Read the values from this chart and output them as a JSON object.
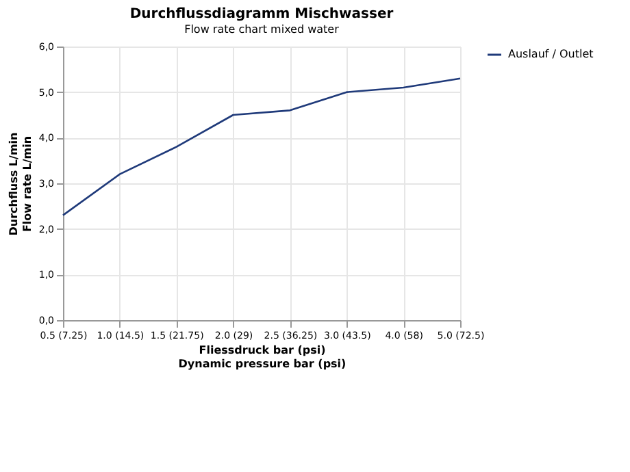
{
  "chart_data": {
    "type": "line",
    "title": "Durchflussdiagramm Mischwasser",
    "subtitle": "Flow rate chart mixed water",
    "xlabel": "Fliessdruck bar (psi)\nDynamic pressure bar (psi)",
    "ylabel": "Durchfluss L/min\nFlow rate L/min",
    "categories": [
      "0.5 (7.25)",
      "1.0 (14.5)",
      "1.5 (21.75)",
      "2.0 (29)",
      "2.5 (36.25)",
      "3.0 (43.5)",
      "4.0 (58)",
      "5.0 (72.5)"
    ],
    "series": [
      {
        "name": "Auslauf / Outlet",
        "color": "#1f3a7a",
        "values": [
          2.3,
          3.2,
          3.8,
          4.5,
          4.6,
          5.0,
          5.1,
          5.3
        ]
      }
    ],
    "ylim": [
      0,
      6
    ],
    "yticks": [
      {
        "value": 0,
        "label": "0,0"
      },
      {
        "value": 1,
        "label": "1,0"
      },
      {
        "value": 2,
        "label": "2,0"
      },
      {
        "value": 3,
        "label": "3,0"
      },
      {
        "value": 4,
        "label": "4,0"
      },
      {
        "value": 5,
        "label": "5,0"
      },
      {
        "value": 6,
        "label": "6,0"
      }
    ],
    "grid": true,
    "legend": "right",
    "marker": "none",
    "line_style": "solid"
  }
}
